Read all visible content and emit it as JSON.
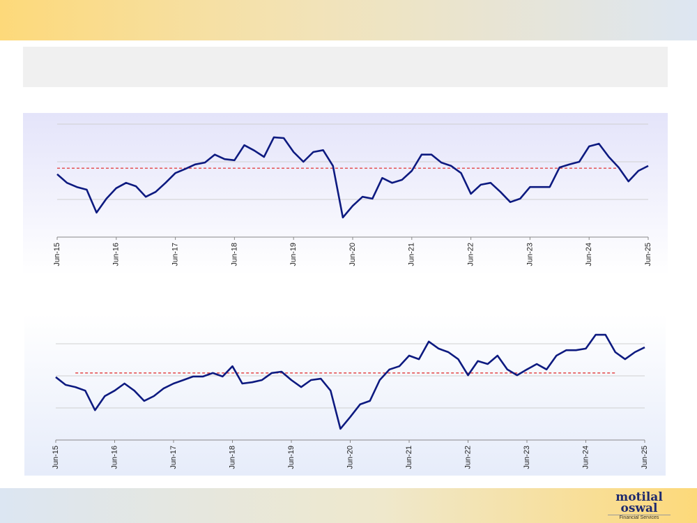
{
  "logo": {
    "name_line1": "motilal",
    "name_line2": "oswal",
    "tagline": "Financial Services"
  },
  "chart_data": [
    {
      "type": "line",
      "categories": [
        "Jun-15",
        null,
        null,
        null,
        null,
        null,
        "Jun-16",
        null,
        null,
        null,
        null,
        null,
        "Jun-17",
        null,
        null,
        null,
        null,
        null,
        "Jun-18",
        null,
        null,
        null,
        null,
        null,
        "Jun-19",
        null,
        null,
        null,
        null,
        null,
        "Jun-20",
        null,
        null,
        null,
        null,
        null,
        "Jun-21",
        null,
        null,
        null,
        null,
        null,
        "Jun-22",
        null,
        null,
        null,
        null,
        null,
        "Jun-23",
        null,
        null,
        null,
        null,
        null,
        "Jun-24",
        null,
        null,
        null,
        null,
        null,
        "Jun-25"
      ],
      "series": [
        {
          "color": "#0d1a80",
          "values": [
            1.67,
            1.44,
            1.33,
            1.26,
            0.65,
            1.02,
            1.3,
            1.44,
            1.35,
            1.07,
            1.2,
            1.44,
            1.7,
            1.81,
            1.93,
            1.98,
            2.19,
            2.07,
            2.04,
            2.44,
            2.3,
            2.13,
            2.65,
            2.63,
            2.26,
            2.0,
            2.26,
            2.31,
            1.89,
            0.52,
            0.83,
            1.07,
            1.02,
            1.57,
            1.44,
            1.52,
            1.76,
            2.19,
            2.19,
            1.98,
            1.89,
            1.7,
            1.15,
            1.39,
            1.44,
            1.2,
            0.93,
            1.02,
            1.33,
            1.33,
            1.33,
            1.85,
            1.93,
            2.0,
            2.41,
            2.48,
            2.13,
            1.85,
            1.48,
            1.76,
            1.89
          ]
        }
      ],
      "mean": {
        "value": 1.83,
        "color": "#e02020"
      },
      "ylim": [
        0,
        3.2
      ],
      "yticks": [
        0,
        1,
        2,
        3
      ],
      "grid": true
    },
    {
      "type": "line",
      "categories": [
        "Jun-15",
        null,
        null,
        null,
        null,
        null,
        "Jun-16",
        null,
        null,
        null,
        null,
        null,
        "Jun-17",
        null,
        null,
        null,
        null,
        null,
        "Jun-18",
        null,
        null,
        null,
        null,
        null,
        "Jun-19",
        null,
        null,
        null,
        null,
        null,
        "Jun-20",
        null,
        null,
        null,
        null,
        null,
        "Jun-21",
        null,
        null,
        null,
        null,
        null,
        "Jun-22",
        null,
        null,
        null,
        null,
        null,
        "Jun-23",
        null,
        null,
        null,
        null,
        null,
        "Jun-24",
        null,
        null,
        null,
        null,
        null,
        "Jun-25"
      ],
      "series": [
        {
          "color": "#0d1a80",
          "values": [
            1.96,
            1.72,
            1.65,
            1.54,
            0.93,
            1.37,
            1.54,
            1.76,
            1.54,
            1.22,
            1.37,
            1.61,
            1.76,
            1.87,
            1.98,
            1.98,
            2.09,
            1.98,
            2.3,
            1.76,
            1.8,
            1.87,
            2.09,
            2.13,
            1.87,
            1.65,
            1.87,
            1.91,
            1.54,
            0.35,
            0.72,
            1.11,
            1.22,
            1.87,
            2.2,
            2.3,
            2.63,
            2.52,
            3.07,
            2.85,
            2.74,
            2.52,
            2.02,
            2.46,
            2.37,
            2.63,
            2.2,
            2.02,
            2.2,
            2.37,
            2.2,
            2.63,
            2.8,
            2.8,
            2.85,
            3.28,
            3.28,
            2.74,
            2.52,
            2.74,
            2.89
          ]
        }
      ],
      "mean": {
        "value": 2.09,
        "color": "#e02020"
      },
      "ylim": [
        0,
        4
      ],
      "yticks": [
        0,
        1,
        2,
        3
      ],
      "grid": true
    }
  ]
}
